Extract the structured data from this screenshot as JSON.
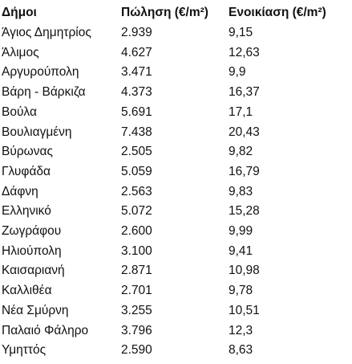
{
  "table": {
    "headers": [
      "Δήμοι",
      "Πώληση (€/m²)",
      "Ενοικίαση (€/m²)"
    ],
    "rows": [
      [
        "Άγιος Δημητρίος",
        "2.939",
        "9,15"
      ],
      [
        "Άλιμος",
        "4.627",
        "12,63"
      ],
      [
        "Αργυρούπολη",
        "3.471",
        "9,9"
      ],
      [
        "Βάρη - Βάρκιζα",
        "4.373",
        "16,37"
      ],
      [
        "Βούλα",
        "5.691",
        "17,1"
      ],
      [
        "Βουλιαγμένη",
        "7.438",
        "20,43"
      ],
      [
        "Βύρωνας",
        "2.505",
        "9,82"
      ],
      [
        "Γλυφάδα",
        "5.059",
        "16,79"
      ],
      [
        "Δάφνη",
        "2.563",
        "9,83"
      ],
      [
        "Ελληνικό",
        "5.072",
        "15,28"
      ],
      [
        "Ζωγράφου",
        "2.600",
        "9,99"
      ],
      [
        "Ηλιούπολη",
        "3.100",
        "9,41"
      ],
      [
        "Καισαριανή",
        "2.871",
        "10,98"
      ],
      [
        "Καλλιθέα",
        "2.701",
        "9,78"
      ],
      [
        "Νέα Σμύρνη",
        "3.255",
        "10,51"
      ],
      [
        "Παλαιό Φάληρο",
        "3.796",
        "12,3"
      ],
      [
        "Υμηττός",
        "2.590",
        "8,63"
      ]
    ]
  }
}
